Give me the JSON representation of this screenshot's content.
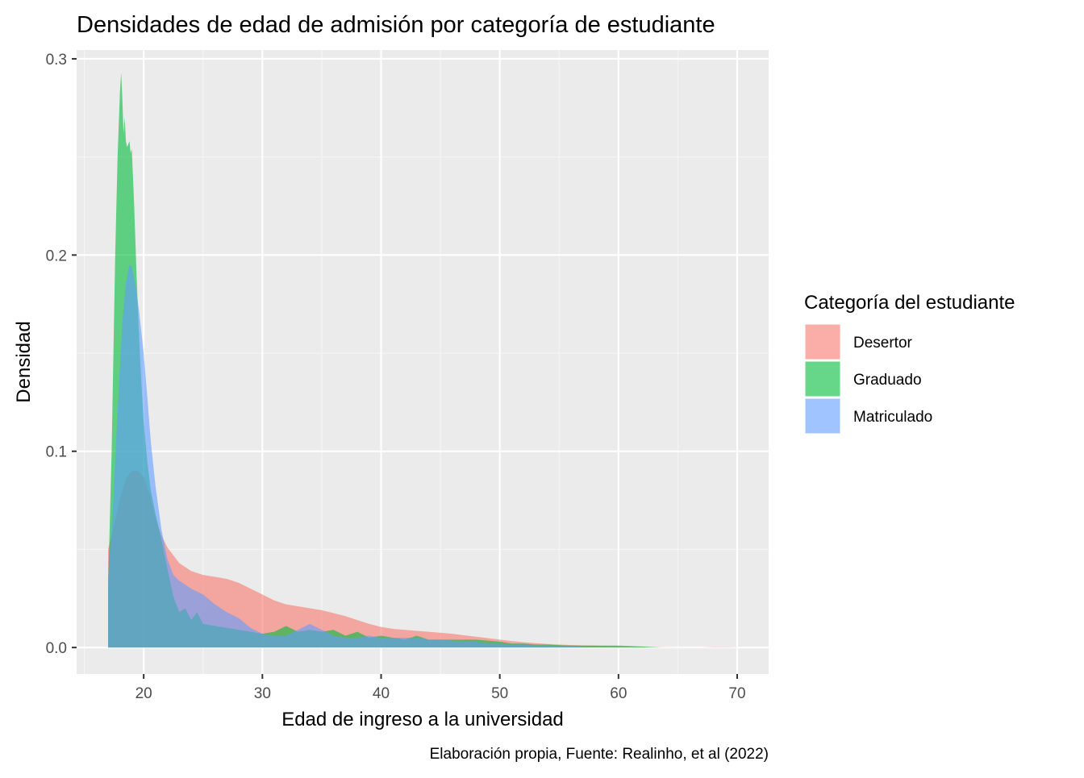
{
  "chart_data": {
    "type": "area",
    "title": "Densidades de edad de admisión por categoría de estudiante",
    "xlabel": "Edad de ingreso a la universidad",
    "ylabel": "Densidad",
    "caption": "Elaboración propia, Fuente: Realinho, et al (2022)",
    "xlim": [
      14.35,
      72.65
    ],
    "ylim": [
      -0.0135,
      0.3045
    ],
    "x_ticks": [
      20,
      30,
      40,
      50,
      60,
      70
    ],
    "x_tick_labels": [
      "20",
      "30",
      "40",
      "50",
      "60",
      "70"
    ],
    "y_ticks": [
      0.0,
      0.1,
      0.2,
      0.3
    ],
    "y_tick_labels": [
      "0.0",
      "0.1",
      "0.2",
      "0.3"
    ],
    "grid": true,
    "legend": {
      "title": "Categoría del estudiante",
      "position": "right"
    },
    "colors": {
      "panel_background": "#ebebeb",
      "grid_major": "#ffffff",
      "grid_minor": "#f5f5f5",
      "axis_tick": "#333333"
    },
    "fill_opacity": 0.6,
    "series": [
      {
        "name": "Desertor",
        "color": "#F8766D",
        "points": [
          [
            17.0,
            0.0
          ],
          [
            17.0,
            0.05
          ],
          [
            17.5,
            0.062
          ],
          [
            18.0,
            0.076
          ],
          [
            18.5,
            0.086
          ],
          [
            19.0,
            0.09
          ],
          [
            19.5,
            0.09
          ],
          [
            20.0,
            0.087
          ],
          [
            20.5,
            0.078
          ],
          [
            21.0,
            0.066
          ],
          [
            21.5,
            0.057
          ],
          [
            22.0,
            0.051
          ],
          [
            22.5,
            0.047
          ],
          [
            23.0,
            0.043
          ],
          [
            24.0,
            0.039
          ],
          [
            25.0,
            0.037
          ],
          [
            26.0,
            0.036
          ],
          [
            27.0,
            0.035
          ],
          [
            28.0,
            0.033
          ],
          [
            29.0,
            0.03
          ],
          [
            30.0,
            0.027
          ],
          [
            31.0,
            0.024
          ],
          [
            32.0,
            0.022
          ],
          [
            33.0,
            0.021
          ],
          [
            34.0,
            0.02
          ],
          [
            35.0,
            0.019
          ],
          [
            36.0,
            0.0175
          ],
          [
            37.0,
            0.016
          ],
          [
            38.0,
            0.014
          ],
          [
            39.0,
            0.012
          ],
          [
            40.0,
            0.0105
          ],
          [
            41.0,
            0.0095
          ],
          [
            42.0,
            0.009
          ],
          [
            43.0,
            0.0085
          ],
          [
            44.0,
            0.008
          ],
          [
            45.0,
            0.0075
          ],
          [
            46.0,
            0.007
          ],
          [
            47.0,
            0.0062
          ],
          [
            48.0,
            0.0055
          ],
          [
            49.0,
            0.0048
          ],
          [
            50.0,
            0.004
          ],
          [
            51.0,
            0.0033
          ],
          [
            52.0,
            0.0027
          ],
          [
            53.0,
            0.0022
          ],
          [
            54.0,
            0.0018
          ],
          [
            55.0,
            0.0015
          ],
          [
            56.0,
            0.0013
          ],
          [
            57.0,
            0.0011
          ],
          [
            58.0,
            0.001
          ],
          [
            59.0,
            0.0008
          ],
          [
            60.0,
            0.0006
          ],
          [
            61.0,
            0.0004
          ],
          [
            62.0,
            0.0003
          ],
          [
            63.0,
            0.0002
          ],
          [
            64.0,
            0.0001
          ],
          [
            65.0,
            5e-05
          ],
          [
            66.0,
            5e-05
          ],
          [
            67.0,
            8e-05
          ],
          [
            68.0,
            0.0002
          ],
          [
            69.0,
            0.0002
          ],
          [
            70.0,
            0.0001
          ],
          [
            70.0,
            0.0
          ]
        ]
      },
      {
        "name": "Graduado",
        "color": "#00BA38",
        "points": [
          [
            17.0,
            0.0
          ],
          [
            17.0,
            0.03
          ],
          [
            17.3,
            0.1
          ],
          [
            17.6,
            0.2
          ],
          [
            17.8,
            0.25
          ],
          [
            18.0,
            0.283
          ],
          [
            18.1,
            0.293
          ],
          [
            18.2,
            0.28
          ],
          [
            18.3,
            0.262
          ],
          [
            18.4,
            0.27
          ],
          [
            18.5,
            0.258
          ],
          [
            18.6,
            0.255
          ],
          [
            18.8,
            0.258
          ],
          [
            18.9,
            0.252
          ],
          [
            19.0,
            0.254
          ],
          [
            19.2,
            0.225
          ],
          [
            19.4,
            0.19
          ],
          [
            19.6,
            0.16
          ],
          [
            19.8,
            0.135
          ],
          [
            20.0,
            0.115
          ],
          [
            20.3,
            0.095
          ],
          [
            20.6,
            0.08
          ],
          [
            21.0,
            0.068
          ],
          [
            21.5,
            0.055
          ],
          [
            22.0,
            0.04
          ],
          [
            22.5,
            0.026
          ],
          [
            23.0,
            0.018
          ],
          [
            23.5,
            0.02
          ],
          [
            24.0,
            0.014
          ],
          [
            24.5,
            0.018
          ],
          [
            25.0,
            0.012
          ],
          [
            26.0,
            0.011
          ],
          [
            27.0,
            0.01
          ],
          [
            28.0,
            0.009
          ],
          [
            29.0,
            0.008
          ],
          [
            30.0,
            0.007
          ],
          [
            31.0,
            0.008
          ],
          [
            32.0,
            0.011
          ],
          [
            33.0,
            0.008
          ],
          [
            34.0,
            0.009
          ],
          [
            35.0,
            0.008
          ],
          [
            36.0,
            0.009
          ],
          [
            37.0,
            0.006
          ],
          [
            38.0,
            0.008
          ],
          [
            39.0,
            0.005
          ],
          [
            40.0,
            0.006
          ],
          [
            41.0,
            0.005
          ],
          [
            42.0,
            0.004
          ],
          [
            43.0,
            0.006
          ],
          [
            44.0,
            0.004
          ],
          [
            45.0,
            0.004
          ],
          [
            46.0,
            0.004
          ],
          [
            47.0,
            0.004
          ],
          [
            48.0,
            0.004
          ],
          [
            49.0,
            0.0035
          ],
          [
            50.0,
            0.003
          ],
          [
            51.0,
            0.002
          ],
          [
            52.0,
            0.002
          ],
          [
            53.0,
            0.0015
          ],
          [
            54.0,
            0.0015
          ],
          [
            55.0,
            0.0012
          ],
          [
            56.0,
            0.001
          ],
          [
            57.0,
            0.001
          ],
          [
            58.0,
            0.001
          ],
          [
            59.0,
            0.001
          ],
          [
            60.0,
            0.001
          ],
          [
            61.0,
            0.0008
          ],
          [
            62.0,
            0.0005
          ],
          [
            63.0,
            0.0002
          ],
          [
            63.5,
            0.0
          ],
          [
            63.5,
            0.0
          ]
        ]
      },
      {
        "name": "Matriculado",
        "color": "#619CFF",
        "points": [
          [
            17.0,
            0.0
          ],
          [
            17.0,
            0.035
          ],
          [
            17.4,
            0.07
          ],
          [
            17.8,
            0.12
          ],
          [
            18.2,
            0.165
          ],
          [
            18.5,
            0.186
          ],
          [
            18.8,
            0.195
          ],
          [
            19.0,
            0.194
          ],
          [
            19.3,
            0.185
          ],
          [
            19.6,
            0.172
          ],
          [
            20.0,
            0.15
          ],
          [
            20.3,
            0.128
          ],
          [
            20.6,
            0.105
          ],
          [
            21.0,
            0.082
          ],
          [
            21.5,
            0.06
          ],
          [
            22.0,
            0.045
          ],
          [
            22.5,
            0.037
          ],
          [
            23.0,
            0.034
          ],
          [
            24.0,
            0.03
          ],
          [
            25.0,
            0.027
          ],
          [
            26.0,
            0.022
          ],
          [
            27.0,
            0.018
          ],
          [
            28.0,
            0.015
          ],
          [
            29.0,
            0.01
          ],
          [
            30.0,
            0.007
          ],
          [
            31.0,
            0.006
          ],
          [
            32.0,
            0.006
          ],
          [
            33.0,
            0.009
          ],
          [
            34.0,
            0.012
          ],
          [
            35.0,
            0.009
          ],
          [
            36.0,
            0.006
          ],
          [
            37.0,
            0.005
          ],
          [
            38.0,
            0.005
          ],
          [
            39.0,
            0.006
          ],
          [
            40.0,
            0.005
          ],
          [
            41.0,
            0.005
          ],
          [
            42.0,
            0.005
          ],
          [
            43.0,
            0.005
          ],
          [
            44.0,
            0.004
          ],
          [
            45.0,
            0.004
          ],
          [
            46.0,
            0.0035
          ],
          [
            47.0,
            0.003
          ],
          [
            48.0,
            0.003
          ],
          [
            49.0,
            0.002
          ],
          [
            50.0,
            0.002
          ],
          [
            51.0,
            0.0015
          ],
          [
            52.0,
            0.0015
          ],
          [
            53.0,
            0.001
          ],
          [
            54.0,
            0.001
          ],
          [
            55.0,
            0.0008
          ],
          [
            56.0,
            0.0004
          ],
          [
            57.0,
            0.0002
          ],
          [
            57.5,
            0.0
          ],
          [
            57.5,
            0.0
          ]
        ]
      }
    ]
  }
}
